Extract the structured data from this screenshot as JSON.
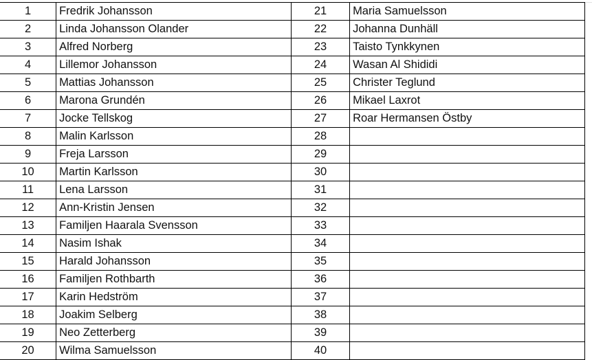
{
  "left": [
    {
      "n": "1",
      "name": "Fredrik Johansson"
    },
    {
      "n": "2",
      "name": "Linda Johansson Olander"
    },
    {
      "n": "3",
      "name": "Alfred Norberg"
    },
    {
      "n": "4",
      "name": "Lillemor Johansson"
    },
    {
      "n": "5",
      "name": "Mattias Johansson"
    },
    {
      "n": "6",
      "name": "Marona Grundén"
    },
    {
      "n": "7",
      "name": "Jocke Tellskog"
    },
    {
      "n": "8",
      "name": "Malin Karlsson"
    },
    {
      "n": "9",
      "name": "Freja Larsson"
    },
    {
      "n": "10",
      "name": "Martin Karlsson"
    },
    {
      "n": "11",
      "name": "Lena Larsson"
    },
    {
      "n": "12",
      "name": "Ann-Kristin Jensen"
    },
    {
      "n": "13",
      "name": "Familjen Haarala Svensson"
    },
    {
      "n": "14",
      "name": "Nasim Ishak"
    },
    {
      "n": "15",
      "name": "Harald Johansson"
    },
    {
      "n": "16",
      "name": "Familjen Rothbarth"
    },
    {
      "n": "17",
      "name": "Karin Hedström"
    },
    {
      "n": "18",
      "name": "Joakim Selberg"
    },
    {
      "n": "19",
      "name": "Neo Zetterberg"
    },
    {
      "n": "20",
      "name": "Wilma Samuelsson"
    }
  ],
  "right": [
    {
      "n": "21",
      "name": "Maria Samuelsson"
    },
    {
      "n": "22",
      "name": "Johanna Dunhäll"
    },
    {
      "n": "23",
      "name": "Taisto Tynkkynen"
    },
    {
      "n": "24",
      "name": "Wasan Al Shididi"
    },
    {
      "n": "25",
      "name": "Christer Teglund"
    },
    {
      "n": "26",
      "name": "Mikael Laxrot"
    },
    {
      "n": "27",
      "name": "Roar Hermansen Östby"
    },
    {
      "n": "28",
      "name": ""
    },
    {
      "n": "29",
      "name": ""
    },
    {
      "n": "30",
      "name": ""
    },
    {
      "n": "31",
      "name": ""
    },
    {
      "n": "32",
      "name": ""
    },
    {
      "n": "33",
      "name": ""
    },
    {
      "n": "34",
      "name": ""
    },
    {
      "n": "35",
      "name": ""
    },
    {
      "n": "36",
      "name": ""
    },
    {
      "n": "37",
      "name": ""
    },
    {
      "n": "38",
      "name": ""
    },
    {
      "n": "39",
      "name": ""
    },
    {
      "n": "40",
      "name": ""
    }
  ]
}
